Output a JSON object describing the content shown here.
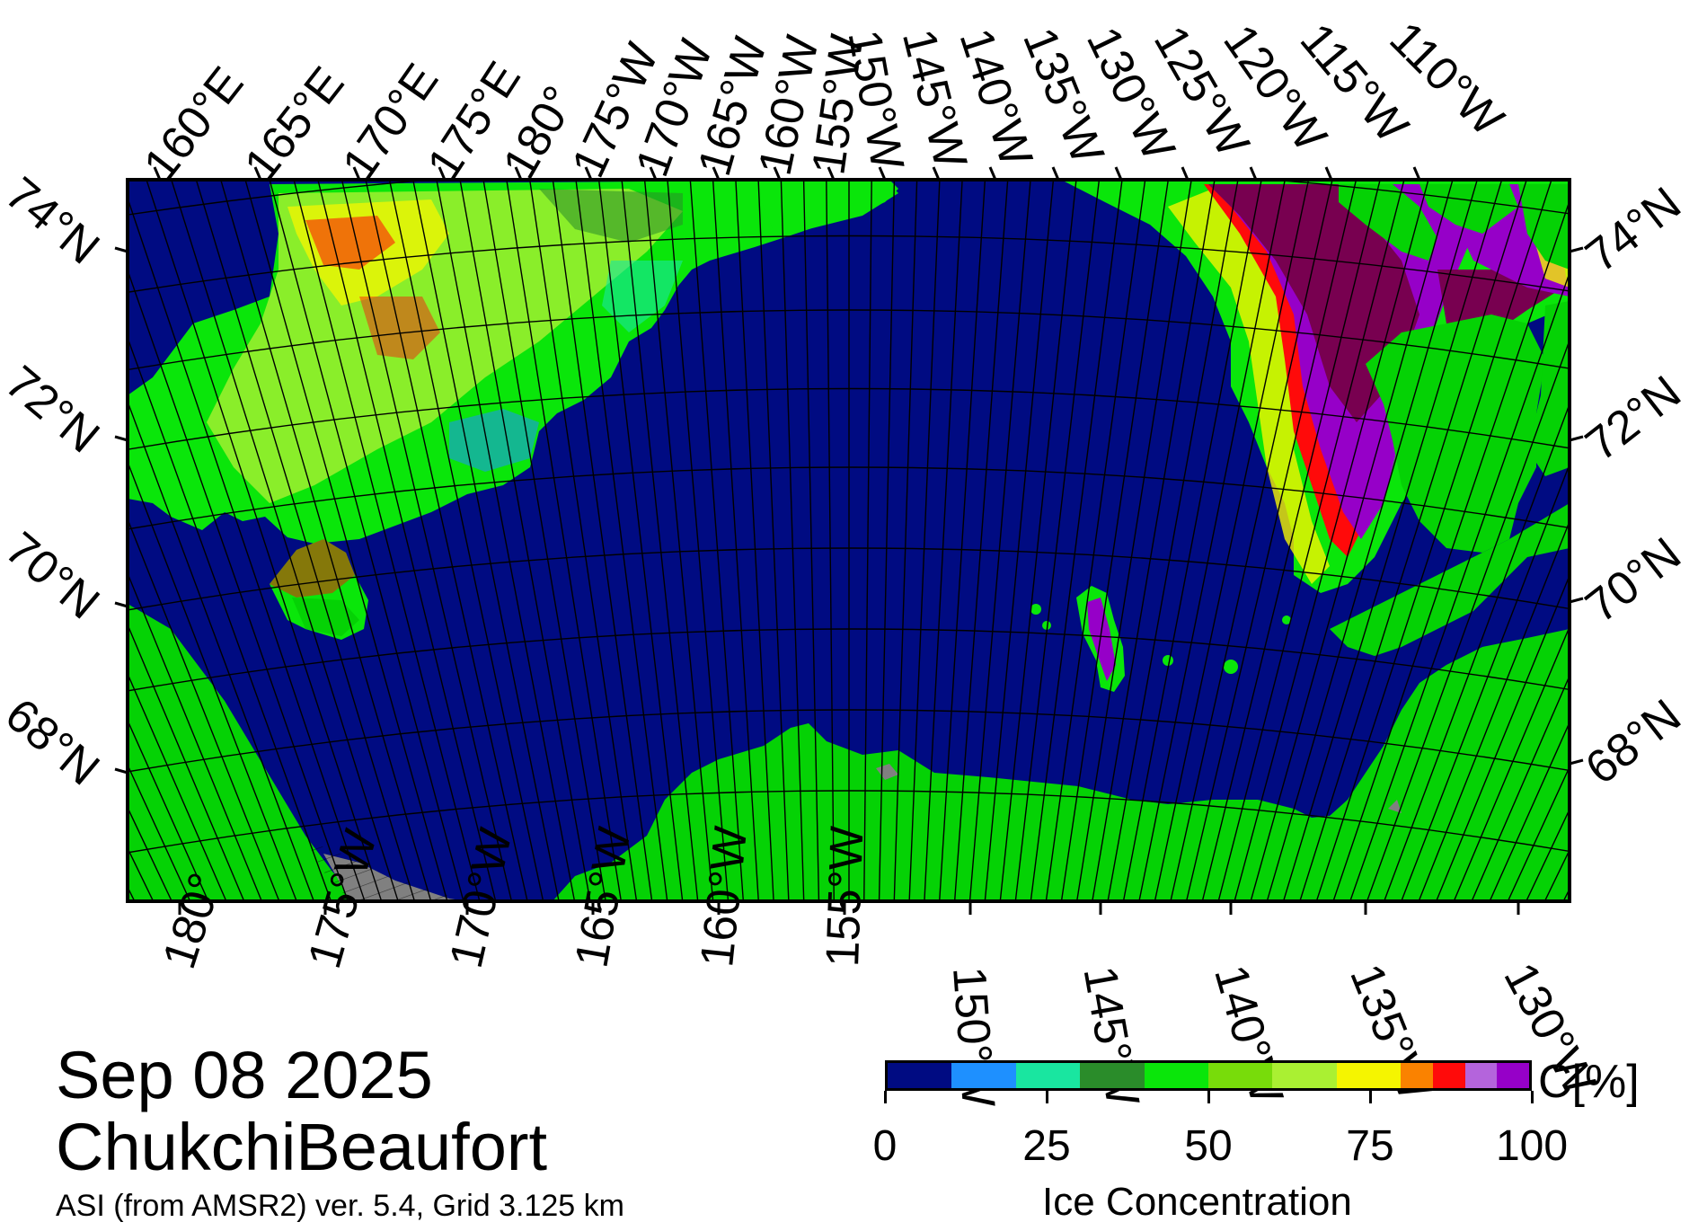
{
  "title": {
    "date": "Sep 08 2025",
    "region": "ChukchiBeaufort",
    "source": "ASI (from AMSR2) ver. 5.4,  Grid 3.125 km"
  },
  "map": {
    "colors": {
      "open_water": "#000b82",
      "land": "#05d205",
      "no_data": "#808080",
      "graticule": "#000000"
    },
    "top_lon_labels": [
      "160°E",
      "165°E",
      "170°E",
      "175°E",
      "180°",
      "175°W",
      "170°W",
      "165°W",
      "160°W",
      "155°W",
      "150°W",
      "145°W",
      "140°W",
      "135°W",
      "130°W",
      "125°W",
      "120°W",
      "115°W",
      "110°W"
    ],
    "bottom_lon_labels": [
      "180°",
      "175°W",
      "170°W",
      "165°W",
      "160°W",
      "155°W",
      "150°W",
      "145°W",
      "140°W",
      "135°W",
      "130°W"
    ],
    "left_lat_labels": [
      "74°N",
      "72°N",
      "70°N",
      "68°N"
    ],
    "right_lat_labels": [
      "74°N",
      "72°N",
      "70°N",
      "68°N"
    ]
  },
  "colorbar": {
    "title": "Ice Concentration",
    "unit": "C[%]",
    "tick_labels": [
      "0",
      "25",
      "50",
      "75",
      "100"
    ],
    "ticks": [
      0,
      25,
      50,
      75,
      100
    ],
    "bins": [
      {
        "from": 0,
        "to": 10,
        "color": "#000b82"
      },
      {
        "from": 10,
        "to": 20,
        "color": "#1e90ff"
      },
      {
        "from": 20,
        "to": 30,
        "color": "#19e6a0"
      },
      {
        "from": 30,
        "to": 40,
        "color": "#2a8c2a"
      },
      {
        "from": 40,
        "to": 50,
        "color": "#0ae60a"
      },
      {
        "from": 50,
        "to": 60,
        "color": "#78dc0a"
      },
      {
        "from": 60,
        "to": 70,
        "color": "#aaf032"
      },
      {
        "from": 70,
        "to": 75,
        "color": "#f5f500"
      },
      {
        "from": 75,
        "to": 80,
        "color": "#f5f500"
      },
      {
        "from": 80,
        "to": 85,
        "color": "#fa8200"
      },
      {
        "from": 85,
        "to": 90,
        "color": "#ff0a0a"
      },
      {
        "from": 90,
        "to": 95,
        "color": "#b464dc"
      },
      {
        "from": 95,
        "to": 100,
        "color": "#9600c8"
      }
    ],
    "dense_ice_color": "#780050"
  }
}
